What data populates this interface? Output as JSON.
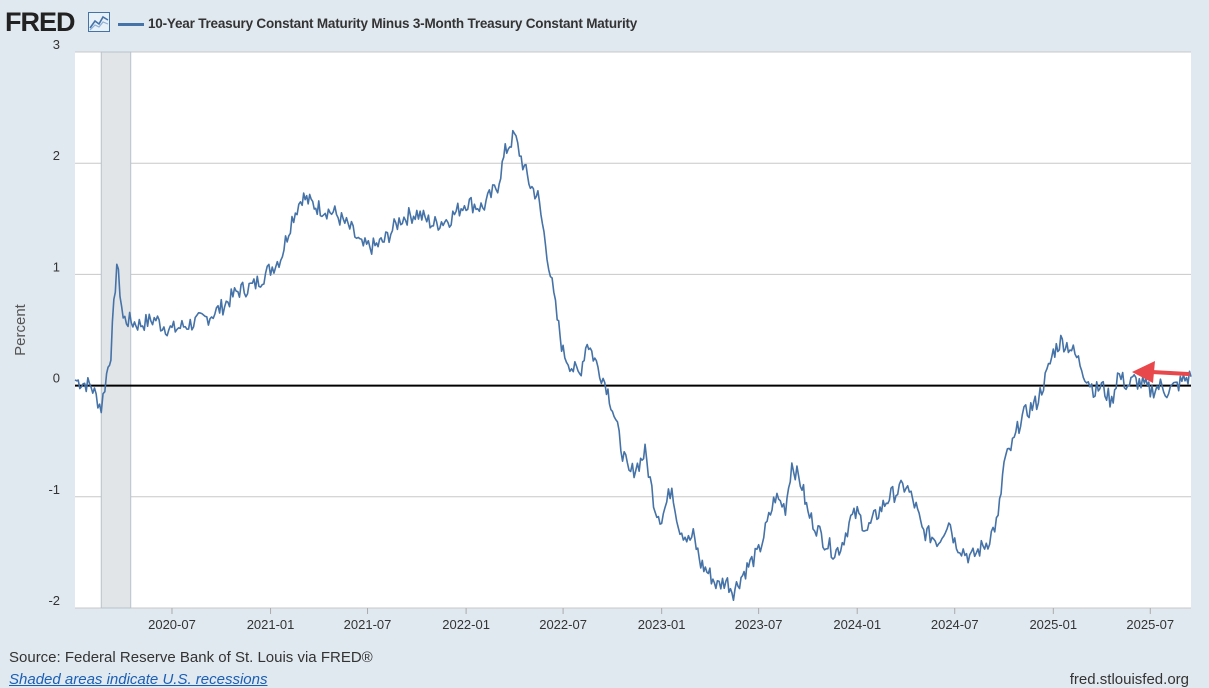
{
  "brand": {
    "name": "FRED",
    "icon": "chart-line-icon"
  },
  "legend": {
    "label": "10-Year Treasury Constant Maturity Minus 3-Month Treasury Constant Maturity",
    "color": "#4572a7"
  },
  "footer": {
    "source": "Source: Federal Reserve Bank of St. Louis via FRED®",
    "recession_note": "Shaded areas indicate U.S. recessions",
    "site": "fred.stlouisfed.org"
  },
  "annotation": {
    "icon": "red-arrow-icon",
    "color": "#e8474c"
  },
  "chart_data": {
    "type": "line",
    "title": "10-Year Treasury Constant Maturity Minus 3-Month Treasury Constant Maturity",
    "ylabel": "Percent",
    "xlabel": "",
    "ylim": [
      -2,
      3
    ],
    "yticks": [
      -2,
      -1,
      0,
      1,
      2,
      3
    ],
    "ytick_labels": [
      "-2",
      "-1",
      "0",
      "1",
      "2",
      "3"
    ],
    "xlim": [
      "2020-01-02",
      "2025-09-15"
    ],
    "xticks": [
      "2020-07",
      "2021-01",
      "2021-07",
      "2022-01",
      "2022-07",
      "2023-01",
      "2023-07",
      "2024-01",
      "2024-07",
      "2025-01",
      "2025-07"
    ],
    "recession_shading": {
      "start": "2020-02",
      "end": "2020-04",
      "color": "#e1e5e8"
    },
    "zero_line": true,
    "series": [
      {
        "name": "10-Year Treasury Constant Maturity Minus 3-Month Treasury Constant Maturity",
        "color": "#4572a7",
        "x": [
          "2020-01-02",
          "2020-02-01",
          "2020-02-20",
          "2020-03-01",
          "2020-03-09",
          "2020-03-20",
          "2020-04-01",
          "2020-05-01",
          "2020-06-01",
          "2020-06-10",
          "2020-07-01",
          "2020-08-01",
          "2020-09-01",
          "2020-10-01",
          "2020-11-01",
          "2020-12-01",
          "2021-01-01",
          "2021-01-20",
          "2021-02-10",
          "2021-03-01",
          "2021-03-15",
          "2021-04-01",
          "2021-05-01",
          "2021-06-01",
          "2021-06-20",
          "2021-07-15",
          "2021-08-01",
          "2021-09-01",
          "2021-10-01",
          "2021-11-01",
          "2021-12-01",
          "2022-01-01",
          "2022-02-01",
          "2022-03-01",
          "2022-03-15",
          "2022-04-01",
          "2022-04-20",
          "2022-05-01",
          "2022-05-15",
          "2022-06-01",
          "2022-06-20",
          "2022-07-01",
          "2022-07-20",
          "2022-08-01",
          "2022-08-15",
          "2022-09-01",
          "2022-09-20",
          "2022-10-01",
          "2022-10-20",
          "2022-11-01",
          "2022-11-20",
          "2022-12-01",
          "2022-12-20",
          "2023-01-01",
          "2023-01-20",
          "2023-02-01",
          "2023-02-20",
          "2023-03-01",
          "2023-03-15",
          "2023-04-01",
          "2023-04-15",
          "2023-05-01",
          "2023-05-15",
          "2023-06-01",
          "2023-06-15",
          "2023-07-01",
          "2023-07-20",
          "2023-08-01",
          "2023-08-20",
          "2023-09-01",
          "2023-09-20",
          "2023-10-01",
          "2023-10-20",
          "2023-11-01",
          "2023-11-20",
          "2023-12-01",
          "2023-12-20",
          "2024-01-01",
          "2024-01-20",
          "2024-02-01",
          "2024-03-01",
          "2024-04-01",
          "2024-04-20",
          "2024-05-01",
          "2024-06-01",
          "2024-06-20",
          "2024-07-01",
          "2024-07-20",
          "2024-08-01",
          "2024-09-01",
          "2024-09-20",
          "2024-10-01",
          "2024-10-20",
          "2024-11-01",
          "2024-11-20",
          "2024-12-01",
          "2024-12-20",
          "2025-01-01",
          "2025-01-15",
          "2025-02-01",
          "2025-02-20",
          "2025-03-01",
          "2025-03-20",
          "2025-04-01",
          "2025-04-20",
          "2025-05-01",
          "2025-05-20",
          "2025-06-01",
          "2025-06-20",
          "2025-07-01",
          "2025-07-20",
          "2025-08-01",
          "2025-08-20",
          "2025-09-01",
          "2025-09-15"
        ],
        "values": [
          0.05,
          0.0,
          -0.2,
          0.1,
          0.3,
          1.1,
          0.6,
          0.55,
          0.6,
          0.55,
          0.5,
          0.55,
          0.6,
          0.7,
          0.85,
          0.9,
          1.05,
          1.15,
          1.5,
          1.7,
          1.65,
          1.6,
          1.55,
          1.4,
          1.25,
          1.25,
          1.3,
          1.5,
          1.55,
          1.45,
          1.5,
          1.65,
          1.6,
          1.8,
          2.1,
          2.25,
          1.95,
          1.8,
          1.7,
          1.2,
          0.6,
          0.3,
          0.15,
          0.1,
          0.4,
          0.2,
          0.0,
          -0.2,
          -0.6,
          -0.8,
          -0.7,
          -0.6,
          -1.1,
          -1.2,
          -0.9,
          -1.25,
          -1.4,
          -1.35,
          -1.6,
          -1.7,
          -1.8,
          -1.75,
          -1.85,
          -1.7,
          -1.6,
          -1.5,
          -1.2,
          -1.0,
          -1.1,
          -0.7,
          -0.9,
          -1.15,
          -1.3,
          -1.4,
          -1.5,
          -1.45,
          -1.2,
          -1.15,
          -1.3,
          -1.2,
          -1.0,
          -0.9,
          -1.1,
          -1.3,
          -1.4,
          -1.2,
          -1.4,
          -1.5,
          -1.55,
          -1.4,
          -1.2,
          -0.7,
          -0.5,
          -0.3,
          -0.2,
          -0.15,
          0.1,
          0.3,
          0.4,
          0.35,
          0.2,
          0.1,
          -0.05,
          0.0,
          -0.15,
          0.1,
          0.0,
          0.05,
          0.0,
          -0.05,
          0.0,
          -0.05,
          0.0,
          0.05,
          0.08
        ]
      }
    ]
  }
}
